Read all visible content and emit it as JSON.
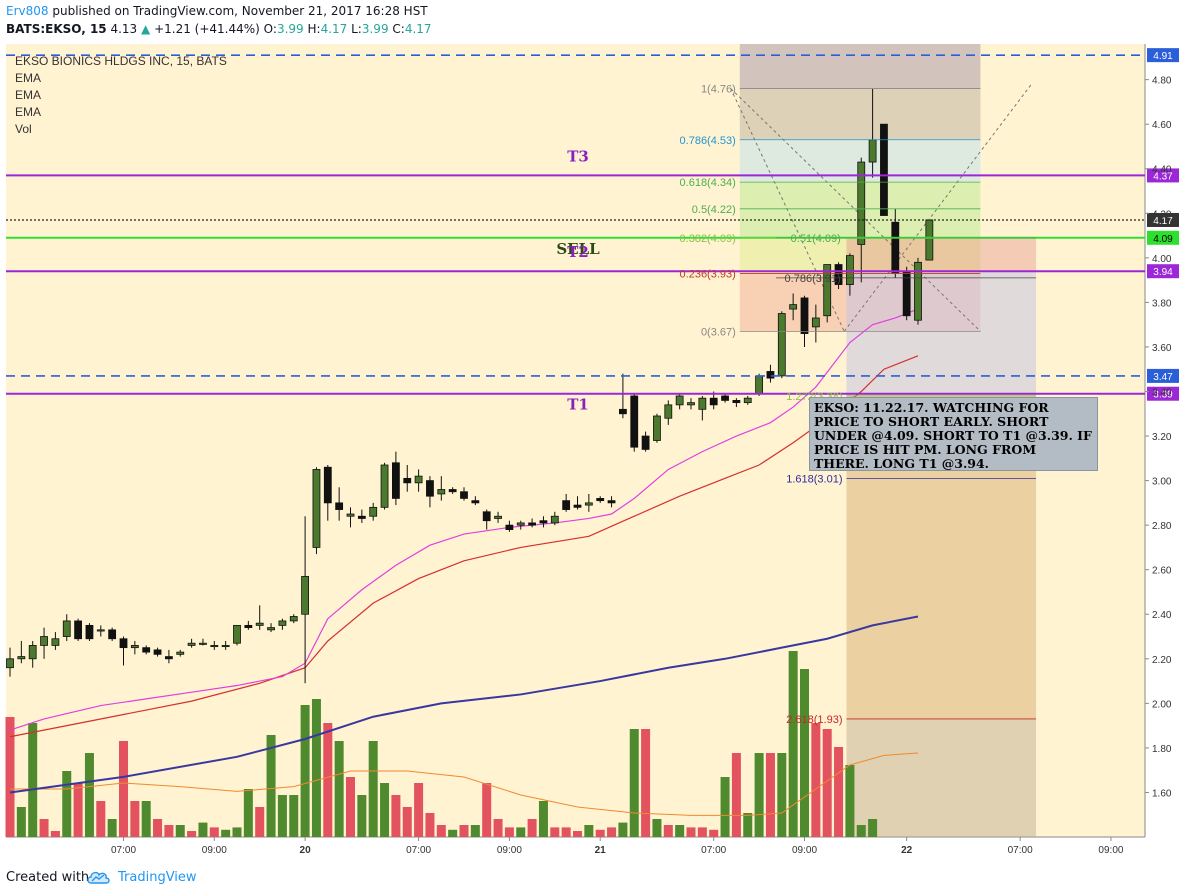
{
  "header": {
    "author": "Erv808",
    "published_text": "published on TradingView.com, November 21, 2017 16:28 HST",
    "symbol": "BATS:EKSO, 15",
    "price": "4.13",
    "change": "+1.21 (+41.44%)",
    "o_label": "O:",
    "o_value": "3.99",
    "h_label": "H:",
    "h_value": "4.17",
    "l_label": "L:",
    "l_value": "3.99",
    "c_label": "C:",
    "c_value": "4.17"
  },
  "legend": {
    "title": "EKSO BIONICS HLDGS INC, 15, BATS",
    "indicators": [
      "EMA",
      "EMA",
      "EMA",
      "Vol"
    ]
  },
  "footer": {
    "created_with": "Created with",
    "brand": "TradingView"
  },
  "note": "EKSO: 11.22.17. WATCHING FOR PRICE TO SHORT EARLY. SHORT UNDER @4.09. SHORT TO T1 @3.39. IF PRICE IS HIT PM. LONG FROM THERE. LONG T1 @3.94.",
  "colors": {
    "background": "#fff3d1",
    "up_candle": "#4b7a2f",
    "down_candle": "#111111",
    "up_volume": "#4f8a2f",
    "down_volume": "#e2525f",
    "ema_fast": "#e040e0",
    "ema_mid": "#d62f2f",
    "ema_slow": "#3838a0",
    "vol_ma": "#f08a30",
    "purple_line": "#9b27d6",
    "green_line": "#2ee02e",
    "blue_dash": "#2b5fd9",
    "black_dot": "#222222"
  },
  "chart_data": {
    "type": "candlestick",
    "interval": "15",
    "ylim": [
      1.4,
      4.96
    ],
    "y_ticks": [
      "4.80",
      "4.60",
      "4.40",
      "4.20",
      "4.00",
      "3.80",
      "3.60",
      "3.40",
      "3.20",
      "3.00",
      "2.80",
      "2.60",
      "2.40",
      "2.20",
      "2.00",
      "1.80",
      "1.60"
    ],
    "x_ticks": [
      {
        "label": "07:00",
        "bar": 10
      },
      {
        "label": "09:00",
        "bar": 18
      },
      {
        "label": "20",
        "bar": 26,
        "bold": true
      },
      {
        "label": "07:00",
        "bar": 36
      },
      {
        "label": "09:00",
        "bar": 44
      },
      {
        "label": "21",
        "bar": 52,
        "bold": true
      },
      {
        "label": "07:00",
        "bar": 62
      },
      {
        "label": "09:00",
        "bar": 70
      },
      {
        "label": "22",
        "bar": 79,
        "bold": true
      },
      {
        "label": "07:00",
        "bar": 89
      },
      {
        "label": "09:00",
        "bar": 97
      }
    ],
    "candles": [
      {
        "o": 2.16,
        "h": 2.25,
        "l": 2.12,
        "c": 2.2
      },
      {
        "o": 2.2,
        "h": 2.28,
        "l": 2.18,
        "c": 2.21
      },
      {
        "o": 2.2,
        "h": 2.28,
        "l": 2.16,
        "c": 2.26
      },
      {
        "o": 2.26,
        "h": 2.34,
        "l": 2.2,
        "c": 2.3
      },
      {
        "o": 2.26,
        "h": 2.32,
        "l": 2.24,
        "c": 2.29
      },
      {
        "o": 2.3,
        "h": 2.4,
        "l": 2.28,
        "c": 2.37
      },
      {
        "o": 2.37,
        "h": 2.38,
        "l": 2.28,
        "c": 2.29
      },
      {
        "o": 2.35,
        "h": 2.36,
        "l": 2.28,
        "c": 2.29
      },
      {
        "o": 2.33,
        "h": 2.35,
        "l": 2.3,
        "c": 2.33
      },
      {
        "o": 2.33,
        "h": 2.34,
        "l": 2.28,
        "c": 2.29
      },
      {
        "o": 2.29,
        "h": 2.3,
        "l": 2.17,
        "c": 2.25
      },
      {
        "o": 2.25,
        "h": 2.28,
        "l": 2.22,
        "c": 2.26
      },
      {
        "o": 2.25,
        "h": 2.26,
        "l": 2.22,
        "c": 2.23
      },
      {
        "o": 2.24,
        "h": 2.25,
        "l": 2.21,
        "c": 2.22
      },
      {
        "o": 2.21,
        "h": 2.24,
        "l": 2.18,
        "c": 2.2
      },
      {
        "o": 2.22,
        "h": 2.24,
        "l": 2.21,
        "c": 2.23
      },
      {
        "o": 2.26,
        "h": 2.29,
        "l": 2.25,
        "c": 2.27
      },
      {
        "o": 2.27,
        "h": 2.29,
        "l": 2.26,
        "c": 2.27
      },
      {
        "o": 2.26,
        "h": 2.28,
        "l": 2.24,
        "c": 2.26
      },
      {
        "o": 2.26,
        "h": 2.28,
        "l": 2.24,
        "c": 2.26
      },
      {
        "o": 2.27,
        "h": 2.35,
        "l": 2.26,
        "c": 2.35
      },
      {
        "o": 2.35,
        "h": 2.37,
        "l": 2.33,
        "c": 2.34
      },
      {
        "o": 2.35,
        "h": 2.44,
        "l": 2.33,
        "c": 2.36
      },
      {
        "o": 2.33,
        "h": 2.36,
        "l": 2.32,
        "c": 2.34
      },
      {
        "o": 2.35,
        "h": 2.38,
        "l": 2.33,
        "c": 2.37
      },
      {
        "o": 2.37,
        "h": 2.4,
        "l": 2.36,
        "c": 2.39
      },
      {
        "o": 2.4,
        "h": 2.84,
        "l": 2.09,
        "c": 2.57
      },
      {
        "o": 2.7,
        "h": 3.06,
        "l": 2.67,
        "c": 3.05
      },
      {
        "o": 3.06,
        "h": 3.07,
        "l": 2.82,
        "c": 2.9
      },
      {
        "o": 2.9,
        "h": 2.97,
        "l": 2.82,
        "c": 2.87
      },
      {
        "o": 2.84,
        "h": 2.88,
        "l": 2.79,
        "c": 2.85
      },
      {
        "o": 2.84,
        "h": 2.87,
        "l": 2.81,
        "c": 2.83
      },
      {
        "o": 2.84,
        "h": 2.9,
        "l": 2.82,
        "c": 2.88
      },
      {
        "o": 2.88,
        "h": 3.08,
        "l": 2.87,
        "c": 3.07
      },
      {
        "o": 3.08,
        "h": 3.13,
        "l": 2.89,
        "c": 2.92
      },
      {
        "o": 3.01,
        "h": 3.07,
        "l": 2.95,
        "c": 2.99
      },
      {
        "o": 2.99,
        "h": 3.05,
        "l": 2.95,
        "c": 3.02
      },
      {
        "o": 3.0,
        "h": 3.02,
        "l": 2.88,
        "c": 2.93
      },
      {
        "o": 2.94,
        "h": 3.02,
        "l": 2.91,
        "c": 2.96
      },
      {
        "o": 2.96,
        "h": 2.97,
        "l": 2.94,
        "c": 2.95
      },
      {
        "o": 2.95,
        "h": 2.97,
        "l": 2.91,
        "c": 2.92
      },
      {
        "o": 2.91,
        "h": 2.93,
        "l": 2.89,
        "c": 2.9
      },
      {
        "o": 2.86,
        "h": 2.87,
        "l": 2.78,
        "c": 2.82
      },
      {
        "o": 2.83,
        "h": 2.86,
        "l": 2.81,
        "c": 2.84
      },
      {
        "o": 2.8,
        "h": 2.82,
        "l": 2.77,
        "c": 2.78
      },
      {
        "o": 2.8,
        "h": 2.82,
        "l": 2.78,
        "c": 2.81
      },
      {
        "o": 2.81,
        "h": 2.83,
        "l": 2.79,
        "c": 2.8
      },
      {
        "o": 2.82,
        "h": 2.84,
        "l": 2.79,
        "c": 2.81
      },
      {
        "o": 2.81,
        "h": 2.86,
        "l": 2.8,
        "c": 2.84
      },
      {
        "o": 2.91,
        "h": 2.94,
        "l": 2.86,
        "c": 2.87
      },
      {
        "o": 2.89,
        "h": 2.93,
        "l": 2.87,
        "c": 2.88
      },
      {
        "o": 2.89,
        "h": 2.94,
        "l": 2.86,
        "c": 2.9
      },
      {
        "o": 2.92,
        "h": 2.93,
        "l": 2.9,
        "c": 2.91
      },
      {
        "o": 2.91,
        "h": 2.93,
        "l": 2.88,
        "c": 2.9
      },
      {
        "o": 3.32,
        "h": 3.48,
        "l": 3.28,
        "c": 3.3
      },
      {
        "o": 3.38,
        "h": 3.39,
        "l": 3.13,
        "c": 3.15
      },
      {
        "o": 3.2,
        "h": 3.22,
        "l": 3.13,
        "c": 3.14
      },
      {
        "o": 3.18,
        "h": 3.3,
        "l": 3.17,
        "c": 3.29
      },
      {
        "o": 3.28,
        "h": 3.36,
        "l": 3.25,
        "c": 3.34
      },
      {
        "o": 3.34,
        "h": 3.39,
        "l": 3.32,
        "c": 3.38
      },
      {
        "o": 3.34,
        "h": 3.37,
        "l": 3.32,
        "c": 3.35
      },
      {
        "o": 3.32,
        "h": 3.38,
        "l": 3.27,
        "c": 3.37
      },
      {
        "o": 3.37,
        "h": 3.4,
        "l": 3.32,
        "c": 3.34
      },
      {
        "o": 3.38,
        "h": 3.39,
        "l": 3.35,
        "c": 3.36
      },
      {
        "o": 3.36,
        "h": 3.37,
        "l": 3.33,
        "c": 3.35
      },
      {
        "o": 3.35,
        "h": 3.38,
        "l": 3.34,
        "c": 3.37
      },
      {
        "o": 3.39,
        "h": 3.48,
        "l": 3.38,
        "c": 3.47
      },
      {
        "o": 3.49,
        "h": 3.52,
        "l": 3.44,
        "c": 3.46
      },
      {
        "o": 3.47,
        "h": 3.76,
        "l": 3.46,
        "c": 3.75
      },
      {
        "o": 3.77,
        "h": 3.84,
        "l": 3.72,
        "c": 3.79
      },
      {
        "o": 3.82,
        "h": 3.83,
        "l": 3.6,
        "c": 3.66
      },
      {
        "o": 3.69,
        "h": 3.79,
        "l": 3.62,
        "c": 3.73
      },
      {
        "o": 3.74,
        "h": 3.97,
        "l": 3.71,
        "c": 3.97
      },
      {
        "o": 3.97,
        "h": 3.98,
        "l": 3.86,
        "c": 3.88
      },
      {
        "o": 3.88,
        "h": 4.02,
        "l": 3.83,
        "c": 4.01
      },
      {
        "o": 4.06,
        "h": 4.45,
        "l": 3.89,
        "c": 4.43
      },
      {
        "o": 4.43,
        "h": 4.76,
        "l": 4.36,
        "c": 4.53
      },
      {
        "o": 4.6,
        "h": 4.6,
        "l": 4.19,
        "c": 4.19
      },
      {
        "o": 4.16,
        "h": 4.22,
        "l": 3.91,
        "c": 3.93
      },
      {
        "o": 3.94,
        "h": 3.96,
        "l": 3.72,
        "c": 3.74
      },
      {
        "o": 3.72,
        "h": 4.0,
        "l": 3.7,
        "c": 3.98
      },
      {
        "o": 3.99,
        "h": 4.17,
        "l": 3.99,
        "c": 4.17
      }
    ],
    "volume_bars": [
      [
        0,
        1.0
      ],
      [
        1,
        0.25
      ],
      [
        1,
        0.95
      ],
      [
        0,
        0.15
      ],
      [
        0,
        0.05
      ],
      [
        1,
        0.55
      ],
      [
        0,
        0.45
      ],
      [
        1,
        0.7
      ],
      [
        0,
        0.3
      ],
      [
        1,
        0.15
      ],
      [
        0,
        0.8
      ],
      [
        0,
        0.3
      ],
      [
        1,
        0.3
      ],
      [
        0,
        0.15
      ],
      [
        0,
        0.1
      ],
      [
        1,
        0.1
      ],
      [
        0,
        0.05
      ],
      [
        1,
        0.12
      ],
      [
        0,
        0.08
      ],
      [
        1,
        0.06
      ],
      [
        1,
        0.08
      ],
      [
        1,
        0.4
      ],
      [
        0,
        0.25
      ],
      [
        1,
        0.85
      ],
      [
        1,
        0.35
      ],
      [
        1,
        0.35
      ],
      [
        1,
        1.1
      ],
      [
        1,
        1.15
      ],
      [
        0,
        0.95
      ],
      [
        1,
        0.8
      ],
      [
        0,
        0.5
      ],
      [
        1,
        0.35
      ],
      [
        1,
        0.8
      ],
      [
        1,
        0.45
      ],
      [
        0,
        0.35
      ],
      [
        0,
        0.25
      ],
      [
        0,
        0.45
      ],
      [
        0,
        0.2
      ],
      [
        0,
        0.1
      ],
      [
        1,
        0.06
      ],
      [
        0,
        0.1
      ],
      [
        1,
        0.1
      ],
      [
        0,
        0.45
      ],
      [
        0,
        0.15
      ],
      [
        0,
        0.08
      ],
      [
        1,
        0.08
      ],
      [
        0,
        0.15
      ],
      [
        1,
        0.3
      ],
      [
        0,
        0.08
      ],
      [
        0,
        0.08
      ],
      [
        0,
        0.05
      ],
      [
        1,
        0.1
      ],
      [
        0,
        0.06
      ],
      [
        0,
        0.08
      ],
      [
        1,
        0.12
      ],
      [
        1,
        0.9
      ],
      [
        0,
        0.9
      ],
      [
        1,
        0.15
      ],
      [
        0,
        0.1
      ],
      [
        1,
        0.1
      ],
      [
        0,
        0.08
      ],
      [
        0,
        0.08
      ],
      [
        0,
        0.06
      ],
      [
        1,
        0.5
      ],
      [
        0,
        0.7
      ],
      [
        1,
        0.2
      ],
      [
        1,
        0.7
      ],
      [
        0,
        0.7
      ],
      [
        1,
        0.7
      ],
      [
        1,
        1.55
      ],
      [
        1,
        1.4
      ],
      [
        0,
        0.95
      ],
      [
        0,
        0.9
      ],
      [
        0,
        0.75
      ],
      [
        1,
        0.6
      ],
      [
        1,
        0.1
      ],
      [
        1,
        0.15
      ]
    ],
    "ema_fast": [
      [
        0,
        1.88
      ],
      [
        3,
        1.93
      ],
      [
        8,
        1.99
      ],
      [
        12,
        2.02
      ],
      [
        16,
        2.05
      ],
      [
        20,
        2.08
      ],
      [
        24,
        2.12
      ],
      [
        26,
        2.18
      ],
      [
        28,
        2.38
      ],
      [
        31,
        2.51
      ],
      [
        34,
        2.62
      ],
      [
        37,
        2.71
      ],
      [
        40,
        2.76
      ],
      [
        44,
        2.79
      ],
      [
        48,
        2.81
      ],
      [
        51,
        2.83
      ],
      [
        53,
        2.85
      ],
      [
        55,
        2.92
      ],
      [
        58,
        3.05
      ],
      [
        61,
        3.13
      ],
      [
        64,
        3.2
      ],
      [
        67,
        3.26
      ],
      [
        69,
        3.33
      ],
      [
        71,
        3.42
      ],
      [
        74,
        3.62
      ],
      [
        76,
        3.7
      ],
      [
        78,
        3.73
      ],
      [
        80,
        3.77
      ]
    ],
    "ema_mid": [
      [
        0,
        1.85
      ],
      [
        4,
        1.89
      ],
      [
        10,
        1.95
      ],
      [
        16,
        2.01
      ],
      [
        22,
        2.09
      ],
      [
        26,
        2.16
      ],
      [
        28,
        2.28
      ],
      [
        32,
        2.45
      ],
      [
        36,
        2.56
      ],
      [
        40,
        2.64
      ],
      [
        45,
        2.7
      ],
      [
        51,
        2.75
      ],
      [
        55,
        2.84
      ],
      [
        59,
        2.93
      ],
      [
        63,
        3.01
      ],
      [
        66,
        3.07
      ],
      [
        69,
        3.17
      ],
      [
        72,
        3.28
      ],
      [
        75,
        3.4
      ],
      [
        77,
        3.5
      ],
      [
        80,
        3.56
      ]
    ],
    "ema_slow": [
      [
        0,
        1.6
      ],
      [
        10,
        1.67
      ],
      [
        20,
        1.76
      ],
      [
        26,
        1.84
      ],
      [
        32,
        1.94
      ],
      [
        38,
        2.0
      ],
      [
        45,
        2.04
      ],
      [
        52,
        2.1
      ],
      [
        58,
        2.16
      ],
      [
        63,
        2.2
      ],
      [
        68,
        2.25
      ],
      [
        72,
        2.29
      ],
      [
        76,
        2.35
      ],
      [
        80,
        2.39
      ]
    ],
    "vol_ma_line": [
      [
        0,
        0.4
      ],
      [
        5,
        0.4
      ],
      [
        10,
        0.45
      ],
      [
        15,
        0.42
      ],
      [
        20,
        0.38
      ],
      [
        25,
        0.42
      ],
      [
        30,
        0.55
      ],
      [
        35,
        0.55
      ],
      [
        40,
        0.5
      ],
      [
        45,
        0.35
      ],
      [
        50,
        0.25
      ],
      [
        55,
        0.2
      ],
      [
        60,
        0.18
      ],
      [
        65,
        0.18
      ],
      [
        68,
        0.2
      ],
      [
        71,
        0.4
      ],
      [
        74,
        0.6
      ],
      [
        77,
        0.68
      ],
      [
        80,
        0.7
      ]
    ],
    "hlines": [
      {
        "price": 4.91,
        "style": "dash",
        "color": "blue_dash",
        "label": "4.91"
      },
      {
        "price": 4.37,
        "style": "solid",
        "color": "purple_line",
        "label": "4.37",
        "text": "T3"
      },
      {
        "price": 4.17,
        "style": "dot",
        "color": "black_dot",
        "label": "4.17"
      },
      {
        "price": 4.09,
        "style": "solid",
        "color": "green_line",
        "label": "4.09",
        "text": "SELL"
      },
      {
        "price": 3.94,
        "style": "solid",
        "color": "purple_line",
        "label": "3.94",
        "text": "T2"
      },
      {
        "price": 3.47,
        "style": "dash",
        "color": "blue_dash",
        "label": "3.47"
      },
      {
        "price": 3.39,
        "style": "solid",
        "color": "purple_line",
        "label": "3.39",
        "text": "T1"
      }
    ],
    "fib_levels": [
      {
        "label": "1(4.76)",
        "price": 4.76,
        "color": "#888888"
      },
      {
        "label": "0.786(4.53)",
        "price": 4.53,
        "color": "#2196d3"
      },
      {
        "label": "0.618(4.34)",
        "price": 4.34,
        "color": "#4caf50"
      },
      {
        "label": "0.5(4.22)",
        "price": 4.22,
        "color": "#4caf50"
      },
      {
        "label": "0.382(4.09)",
        "price": 4.09,
        "color": "#8bc34a"
      },
      {
        "label": "0.236(3.93)",
        "price": 3.93,
        "color": "#c0392b"
      },
      {
        "label": "0(3.67)",
        "price": 3.67,
        "color": "#888888"
      }
    ],
    "fib_ext_levels": [
      {
        "label": "0.51(4.09)",
        "price": 4.09,
        "color": "#4caf50"
      },
      {
        "label": "0.786(3.91)",
        "price": 3.91,
        "color": "#444444"
      },
      {
        "label": "1.272(3.38)",
        "price": 3.38,
        "color": "#8bc34a"
      },
      {
        "label": "1.618(3.01)",
        "price": 3.01,
        "color": "#2f2fa0"
      },
      {
        "label": "2.618(1.93)",
        "price": 1.93,
        "color": "#c62828"
      }
    ]
  }
}
